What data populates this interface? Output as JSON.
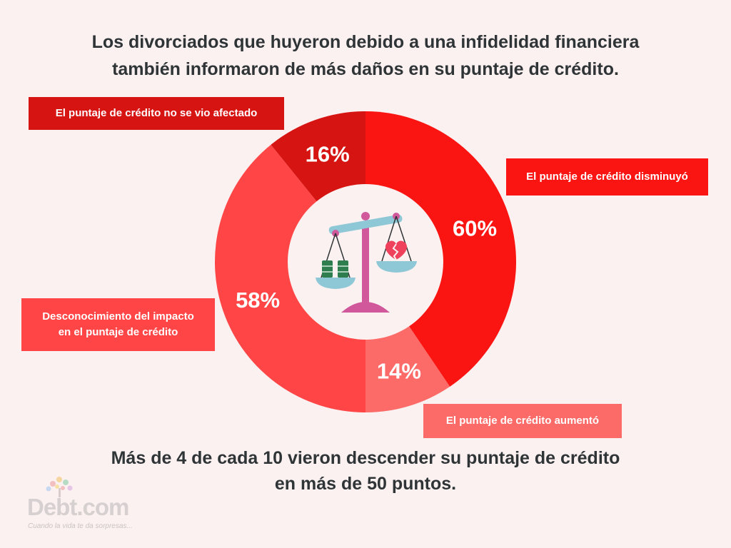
{
  "title": {
    "line1": "Los divorciados que huyeron debido a una infidelidad financiera",
    "line2": "también informaron de más daños en su puntaje de crédito."
  },
  "chart_data": {
    "type": "pie",
    "title": "Los divorciados que huyeron debido a una infidelidad financiera también informaron de más daños en su puntaje de crédito.",
    "slices": [
      {
        "label": "El puntaje de crédito disminuyó",
        "value": 60,
        "display": "60%",
        "color": "#fb1512"
      },
      {
        "label": "El puntaje de crédito aumentó",
        "value": 14,
        "display": "14%",
        "color": "#fd6b68"
      },
      {
        "label": "Desconocimiento del impacto en el puntaje de crédito",
        "value": 58,
        "display": "58%",
        "color": "#ff4545"
      },
      {
        "label": "El puntaje de crédito no se vio afectado",
        "value": 16,
        "display": "16%",
        "color": "#d61412"
      }
    ]
  },
  "callouts": {
    "disminuyo": "El puntaje de crédito disminuyó",
    "aumento": "El puntaje de crédito aumentó",
    "desconocimiento_line1": "Desconocimiento del impacto",
    "desconocimiento_line2": "en el puntaje de crédito",
    "no_afectado": "El puntaje de crédito no se vio afectado"
  },
  "footer": {
    "line1": "Más de 4 de cada 10 vieron descender su puntaje de crédito",
    "line2": "en más de 50 puntos."
  },
  "logo": {
    "name": "Debt.com",
    "tagline": "Cuando la vida te da sorpresas..."
  },
  "icons": {
    "center": "balance-scale-icon",
    "left_pan": "money-stack-icon",
    "right_pan": "broken-heart-icon"
  },
  "colors": {
    "background": "#fcf1f1",
    "text": "#2f3436"
  }
}
